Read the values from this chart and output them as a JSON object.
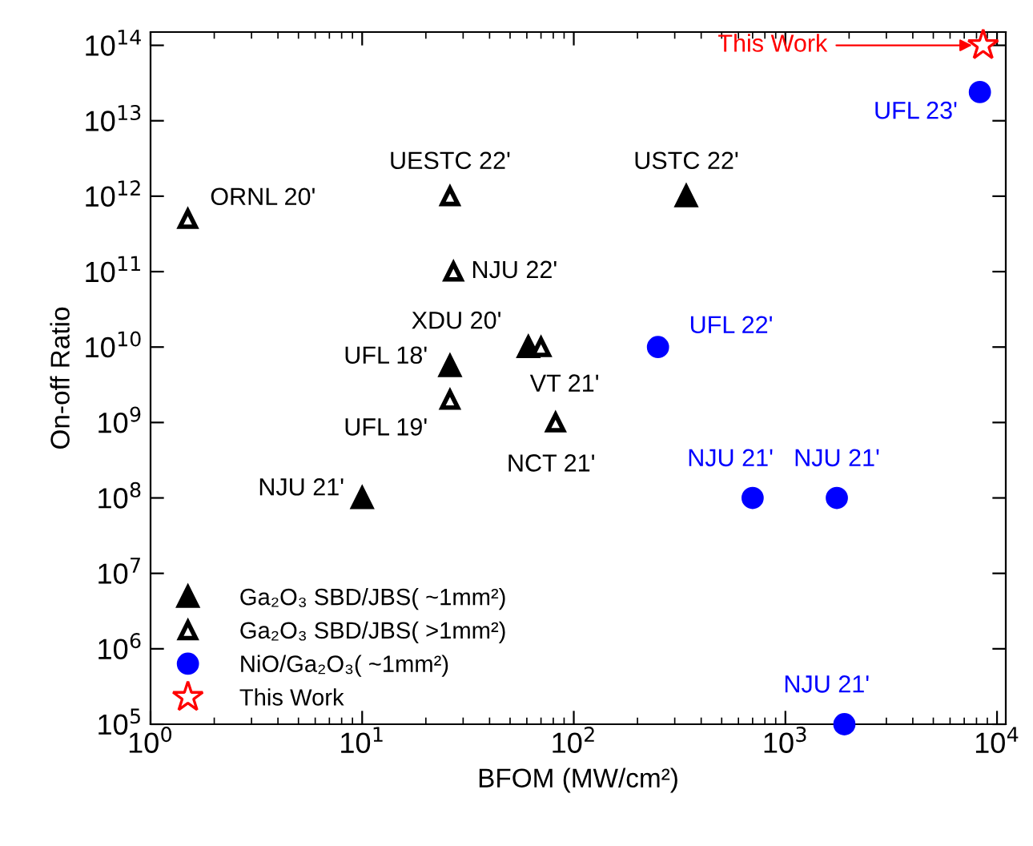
{
  "chart_data": {
    "type": "scatter",
    "xlabel": "BFOM (MW/cm²)",
    "ylabel": "On-off Ratio",
    "log": "xy",
    "xlim": [
      1,
      11000
    ],
    "ylim": [
      100000,
      150000000000000
    ],
    "xticks": [
      {
        "value": 1,
        "label": "10$^{0}$"
      },
      {
        "value": 10,
        "label": "10$^{1}$"
      },
      {
        "value": 100,
        "label": "10$^{2}$"
      },
      {
        "value": 1000,
        "label": "10$^{3}$"
      },
      {
        "value": 10000,
        "label": "10$^{4}$"
      }
    ],
    "yticks": [
      {
        "value": 100000,
        "label": "10$^{5}$"
      },
      {
        "value": 1000000,
        "label": "10$^{6}$"
      },
      {
        "value": 10000000,
        "label": "10$^{7}$"
      },
      {
        "value": 100000000,
        "label": "10$^{8}$"
      },
      {
        "value": 1000000000,
        "label": "10$^{9}$"
      },
      {
        "value": 10000000000,
        "label": "10$^{10}$"
      },
      {
        "value": 100000000000,
        "label": "10$^{11}$"
      },
      {
        "value": 1000000000000,
        "label": "10$^{12}$"
      },
      {
        "value": 10000000000000,
        "label": "10$^{13}$"
      },
      {
        "value": 100000000000000,
        "label": "10$^{14}$"
      }
    ],
    "legend": "bottom left",
    "grid": false,
    "series": [
      {
        "name": "Ga₂O₃ SBD/JBS( ~1mm²)",
        "color": "#000000",
        "marker": "triangle",
        "x": [
          10,
          26,
          61,
          340
        ],
        "values": [
          100000000,
          5600000000,
          10000000000,
          1000000000000
        ]
      },
      {
        "name": "Ga₂O₃ SBD/JBS( >1mm²)",
        "color": "#000000",
        "marker": "triangle open",
        "x": [
          1.5,
          26,
          27,
          26,
          70,
          82
        ],
        "values": [
          500000000000,
          1000000000000,
          100000000000,
          2000000000,
          10000000000,
          1000000000
        ]
      },
      {
        "name": "NiO/Ga₂O₃( ~1mm²)",
        "color": "#0000ff",
        "marker": "circle",
        "x": [
          250,
          700,
          1750,
          1900,
          8300
        ],
        "values": [
          10000000000,
          100000000,
          100000000,
          100000,
          24000000000000
        ]
      },
      {
        "name": "This Work",
        "color": "#ff0000",
        "marker": "star open",
        "x": [
          8600
        ],
        "values": [
          100000000000000
        ]
      }
    ],
    "annotations": [
      {
        "text": "ORNL 20'",
        "x": 1.5,
        "y": 500000000000
      },
      {
        "text": "UESTC 22'",
        "x": 26,
        "y": 1000000000000
      },
      {
        "text": "USTC 22'",
        "x": 340,
        "y": 1000000000000
      },
      {
        "text": "NJU 22'",
        "x": 27,
        "y": 100000000000
      },
      {
        "text": "XDU 20'",
        "x": 61,
        "y": 10000000000
      },
      {
        "text": "UFL 18'",
        "x": 26,
        "y": 5600000000
      },
      {
        "text": "VT 21'",
        "x": 70,
        "y": 10000000000
      },
      {
        "text": "UFL 19'",
        "x": 26,
        "y": 2000000000
      },
      {
        "text": "NCT 21'",
        "x": 82,
        "y": 1000000000
      },
      {
        "text": "NJU 21'",
        "x": 10,
        "y": 100000000
      },
      {
        "text": "UFL 22'",
        "x": 250,
        "y": 10000000000
      },
      {
        "text": "NJU 21'",
        "x": 700,
        "y": 100000000
      },
      {
        "text": "NJU 21'",
        "x": 1750,
        "y": 100000000
      },
      {
        "text": "NJU 21'",
        "x": 1900,
        "y": 100000
      },
      {
        "text": "UFL 23'",
        "x": 8300,
        "y": 24000000000000
      },
      {
        "text": "This Work",
        "x": 8600,
        "y": 100000000000000
      }
    ]
  }
}
